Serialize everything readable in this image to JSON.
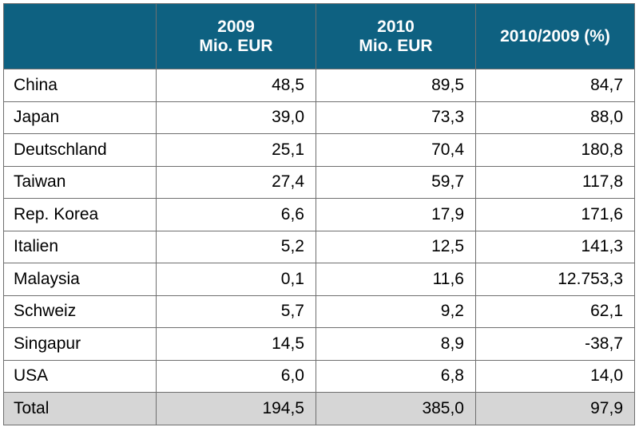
{
  "chart_data": {
    "type": "table",
    "columns": [
      {
        "lines": [
          ""
        ]
      },
      {
        "lines": [
          "2009",
          "Mio. EUR"
        ]
      },
      {
        "lines": [
          "2010",
          "Mio. EUR"
        ]
      },
      {
        "lines": [
          "2010/2009 (%)"
        ]
      }
    ],
    "rows": [
      {
        "country": "China",
        "v2009": "48,5",
        "v2010": "89,5",
        "change": "84,7"
      },
      {
        "country": "Japan",
        "v2009": "39,0",
        "v2010": "73,3",
        "change": "88,0"
      },
      {
        "country": "Deutschland",
        "v2009": "25,1",
        "v2010": "70,4",
        "change": "180,8"
      },
      {
        "country": "Taiwan",
        "v2009": "27,4",
        "v2010": "59,7",
        "change": "117,8"
      },
      {
        "country": "Rep. Korea",
        "v2009": "6,6",
        "v2010": "17,9",
        "change": "171,6"
      },
      {
        "country": "Italien",
        "v2009": "5,2",
        "v2010": "12,5",
        "change": "141,3"
      },
      {
        "country": "Malaysia",
        "v2009": "0,1",
        "v2010": "11,6",
        "change": "12.753,3"
      },
      {
        "country": "Schweiz",
        "v2009": "5,7",
        "v2010": "9,2",
        "change": "62,1"
      },
      {
        "country": "Singapur",
        "v2009": "14,5",
        "v2010": "8,9",
        "change": "-38,7"
      },
      {
        "country": "USA",
        "v2009": "6,0",
        "v2010": "6,8",
        "change": "14,0"
      }
    ],
    "total": {
      "country": "Total",
      "v2009": "194,5",
      "v2010": "385,0",
      "change": "97,9"
    },
    "colors": {
      "header_bg": "#0e6181",
      "header_text": "#ffffff",
      "total_bg": "#d6d6d6",
      "border": "#6f6f6f"
    }
  }
}
